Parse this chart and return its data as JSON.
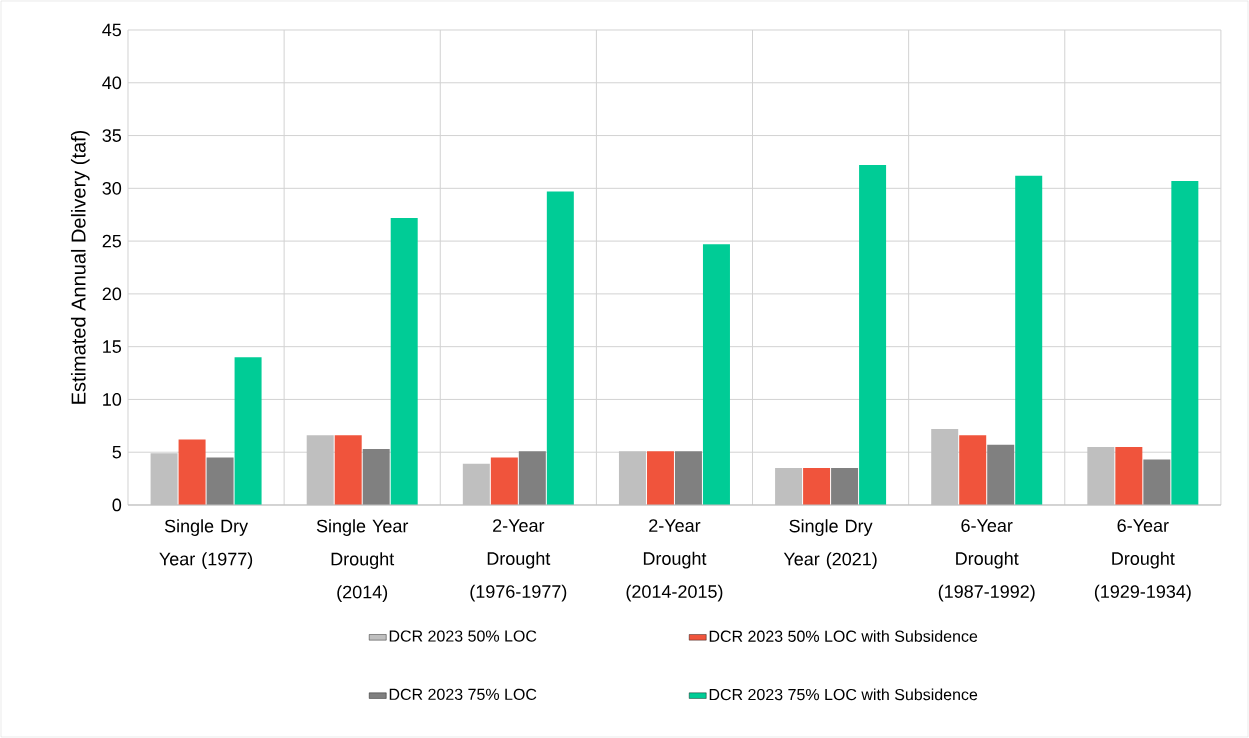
{
  "chart_data": {
    "type": "bar",
    "ylabel": "Estimated Annual Delivery (taf)",
    "categories": [
      "Single Dry Year (1977)",
      "Single Year Drought (2014)",
      "2-Year Drought (1976-1977)",
      "2-Year Drought (2014-2015)",
      "Single Dry Year (2021)",
      "6-Year Drought (1987-1992)",
      "6-Year Drought (1929-1934)"
    ],
    "series": [
      {
        "name": "DCR 2023 50% LOC",
        "color": "#bfbfbf",
        "values": [
          4.9,
          6.6,
          3.9,
          5.1,
          3.5,
          7.2,
          5.5
        ]
      },
      {
        "name": "DCR 2023 50% LOC with Subsidence",
        "color": "#f0543c",
        "values": [
          6.2,
          6.6,
          4.5,
          5.1,
          3.5,
          6.6,
          5.5
        ]
      },
      {
        "name": "DCR 2023 75% LOC",
        "color": "#808080",
        "values": [
          4.5,
          5.3,
          5.1,
          5.1,
          3.5,
          5.7,
          4.3
        ]
      },
      {
        "name": "DCR 2023 75% LOC with Subsidence",
        "color": "#00cc96",
        "values": [
          14.0,
          27.2,
          29.7,
          24.7,
          32.2,
          31.2,
          30.7
        ]
      }
    ],
    "ylim": [
      0,
      45
    ],
    "yticks": [
      0,
      5,
      10,
      15,
      20,
      25,
      30,
      35,
      40,
      45
    ],
    "grid": true,
    "legend": "bottom"
  }
}
